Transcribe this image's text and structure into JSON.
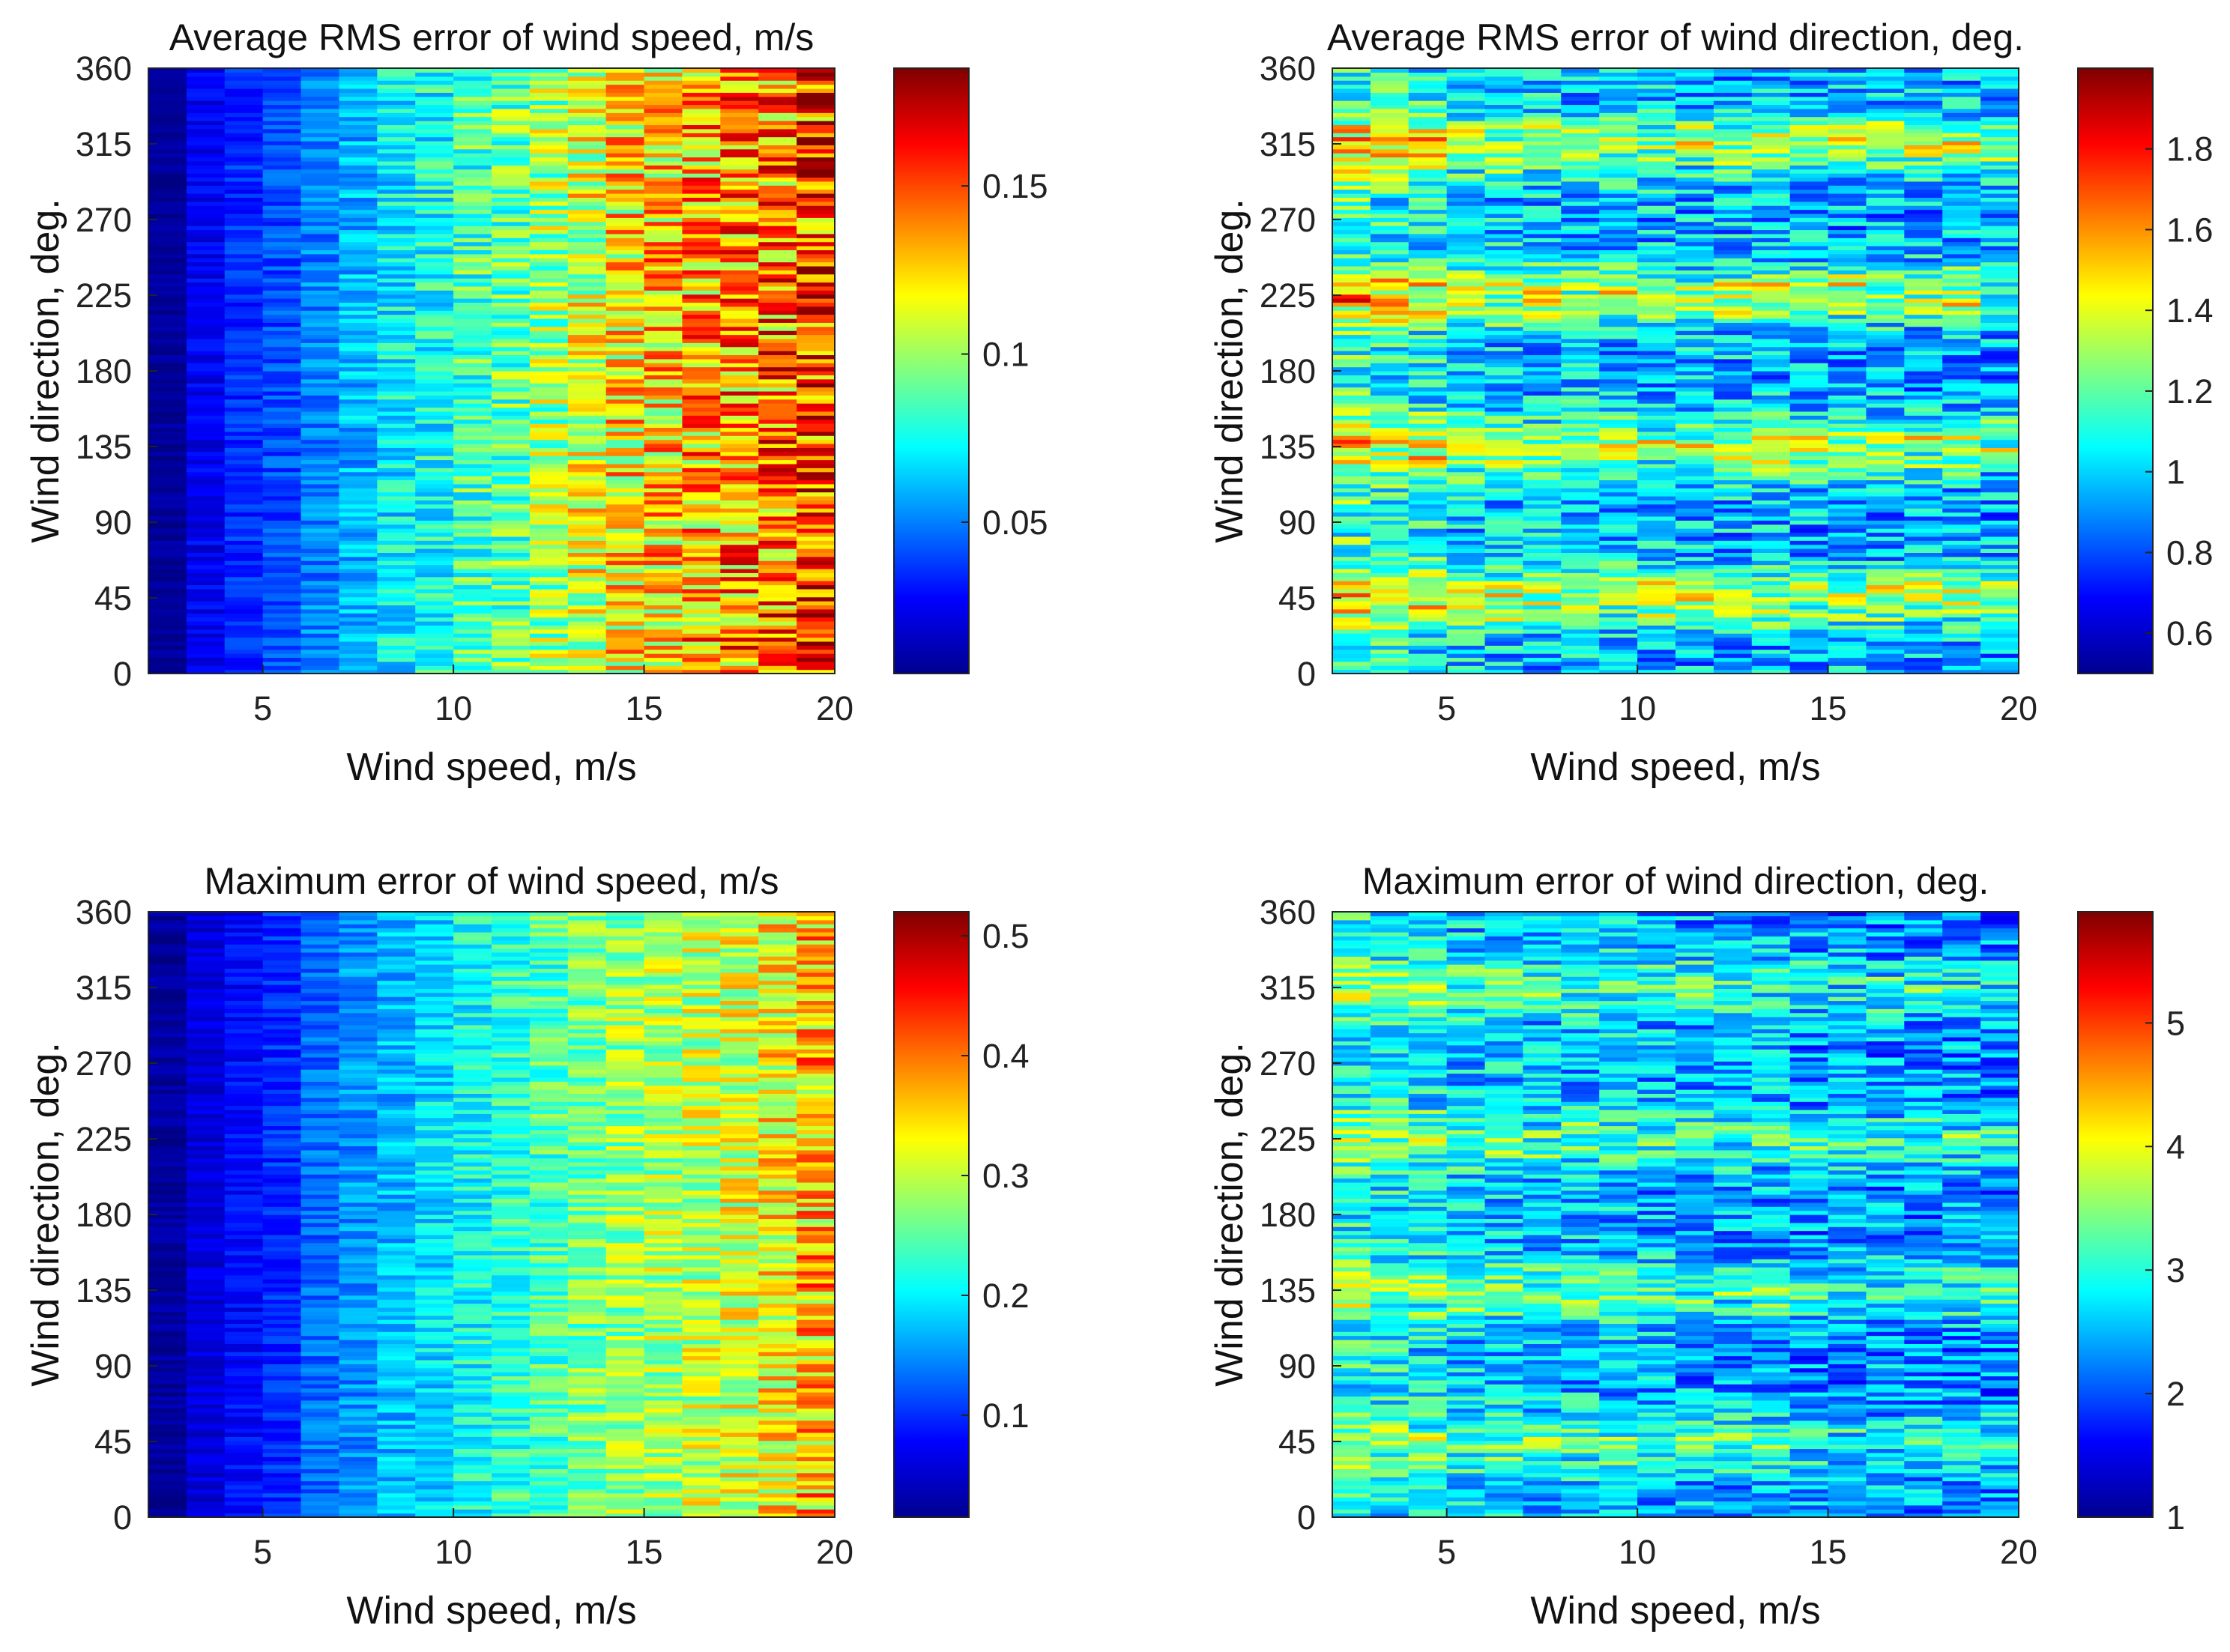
{
  "chart_data": [
    {
      "type": "heatmap",
      "title": "Average RMS error of wind speed, m/s",
      "xlabel": "Wind speed, m/s",
      "ylabel": "Wind direction, deg.",
      "xlim": [
        2,
        20
      ],
      "ylim": [
        0,
        360
      ],
      "xticks": [
        "5",
        "10",
        "15",
        "20"
      ],
      "yticks": [
        "0",
        "45",
        "90",
        "135",
        "180",
        "225",
        "270",
        "315",
        "360"
      ],
      "colorbar": {
        "range": [
          0.005,
          0.185
        ],
        "ticks": [
          "0.05",
          "0.1",
          "0.15"
        ]
      },
      "bin_width": 1,
      "column_centers": [
        2.5,
        3.5,
        4.5,
        5.5,
        6.5,
        7.5,
        8.5,
        9.5,
        10.5,
        11.5,
        12.5,
        13.5,
        14.5,
        15.5,
        16.5,
        17.5,
        18.5,
        19.5
      ],
      "column_mean": [
        0.01,
        0.025,
        0.035,
        0.04,
        0.05,
        0.06,
        0.07,
        0.075,
        0.085,
        0.09,
        0.1,
        0.11,
        0.12,
        0.125,
        0.13,
        0.135,
        0.14,
        0.15
      ],
      "column_spread": [
        0.003,
        0.005,
        0.006,
        0.007,
        0.008,
        0.01,
        0.012,
        0.013,
        0.015,
        0.016,
        0.018,
        0.02,
        0.022,
        0.023,
        0.024,
        0.025,
        0.026,
        0.027
      ],
      "direction_peaks": [],
      "peak_amplitude": 0,
      "seed": 11
    },
    {
      "type": "heatmap",
      "title": "Average RMS error of wind direction, deg.",
      "xlabel": "Wind speed, m/s",
      "ylabel": "Wind direction, deg.",
      "xlim": [
        2,
        20
      ],
      "ylim": [
        0,
        360
      ],
      "xticks": [
        "5",
        "10",
        "15",
        "20"
      ],
      "yticks": [
        "0",
        "45",
        "90",
        "135",
        "180",
        "225",
        "270",
        "315",
        "360"
      ],
      "colorbar": {
        "range": [
          0.5,
          2.0
        ],
        "ticks": [
          "0.6",
          "0.8",
          "1",
          "1.2",
          "1.4",
          "1.6",
          "1.8"
        ]
      },
      "bin_width": 1,
      "column_centers": [
        2.5,
        3.5,
        4.5,
        5.5,
        6.5,
        7.5,
        8.5,
        9.5,
        10.5,
        11.5,
        12.5,
        13.5,
        14.5,
        15.5,
        16.5,
        17.5,
        18.5,
        19.5
      ],
      "column_mean": [
        1.15,
        1.1,
        1.05,
        1.0,
        0.98,
        0.97,
        0.96,
        0.96,
        0.96,
        0.95,
        0.95,
        0.95,
        0.94,
        0.94,
        0.93,
        0.93,
        0.93,
        0.92
      ],
      "column_spread": [
        0.16,
        0.16,
        0.15,
        0.15,
        0.15,
        0.15,
        0.15,
        0.15,
        0.15,
        0.15,
        0.15,
        0.15,
        0.15,
        0.15,
        0.15,
        0.15,
        0.15,
        0.15
      ],
      "direction_peaks": [
        45,
        135,
        225,
        315
      ],
      "peak_amplitude": 0.38,
      "seed": 23
    },
    {
      "type": "heatmap",
      "title": "Maximum error of wind speed, m/s",
      "xlabel": "Wind speed, m/s",
      "ylabel": "Wind direction, deg.",
      "xlim": [
        2,
        20
      ],
      "ylim": [
        0,
        360
      ],
      "xticks": [
        "5",
        "10",
        "15",
        "20"
      ],
      "yticks": [
        "0",
        "45",
        "90",
        "135",
        "180",
        "225",
        "270",
        "315",
        "360"
      ],
      "colorbar": {
        "range": [
          0.015,
          0.52
        ],
        "ticks": [
          "0.1",
          "0.2",
          "0.3",
          "0.4",
          "0.5"
        ]
      },
      "bin_width": 1,
      "column_centers": [
        2.5,
        3.5,
        4.5,
        5.5,
        6.5,
        7.5,
        8.5,
        9.5,
        10.5,
        11.5,
        12.5,
        13.5,
        14.5,
        15.5,
        16.5,
        17.5,
        18.5,
        19.5
      ],
      "column_mean": [
        0.03,
        0.06,
        0.08,
        0.1,
        0.13,
        0.15,
        0.17,
        0.19,
        0.21,
        0.23,
        0.24,
        0.26,
        0.28,
        0.29,
        0.3,
        0.31,
        0.33,
        0.36
      ],
      "column_spread": [
        0.01,
        0.012,
        0.015,
        0.017,
        0.02,
        0.022,
        0.025,
        0.027,
        0.03,
        0.032,
        0.034,
        0.036,
        0.04,
        0.042,
        0.044,
        0.046,
        0.05,
        0.06
      ],
      "direction_peaks": [],
      "peak_amplitude": 0,
      "seed": 37
    },
    {
      "type": "heatmap",
      "title": "Maximum error of wind direction, deg.",
      "xlabel": "Wind speed, m/s",
      "ylabel": "Wind direction, deg.",
      "xlim": [
        2,
        20
      ],
      "ylim": [
        0,
        360
      ],
      "xticks": [
        "5",
        "10",
        "15",
        "20"
      ],
      "yticks": [
        "0",
        "45",
        "90",
        "135",
        "180",
        "225",
        "270",
        "315",
        "360"
      ],
      "colorbar": {
        "range": [
          1.0,
          5.9
        ],
        "ticks": [
          "1",
          "2",
          "3",
          "4",
          "5"
        ]
      },
      "bin_width": 1,
      "column_centers": [
        2.5,
        3.5,
        4.5,
        5.5,
        6.5,
        7.5,
        8.5,
        9.5,
        10.5,
        11.5,
        12.5,
        13.5,
        14.5,
        15.5,
        16.5,
        17.5,
        18.5,
        19.5
      ],
      "column_mean": [
        2.9,
        2.8,
        2.7,
        2.6,
        2.6,
        2.5,
        2.5,
        2.5,
        2.4,
        2.4,
        2.4,
        2.4,
        2.3,
        2.3,
        2.3,
        2.3,
        2.3,
        2.2
      ],
      "column_spread": [
        0.45,
        0.45,
        0.45,
        0.45,
        0.45,
        0.45,
        0.45,
        0.45,
        0.45,
        0.45,
        0.45,
        0.45,
        0.45,
        0.45,
        0.45,
        0.45,
        0.45,
        0.45
      ],
      "direction_peaks": [
        45,
        135,
        225,
        315
      ],
      "peak_amplitude": 0.7,
      "seed": 51
    }
  ]
}
